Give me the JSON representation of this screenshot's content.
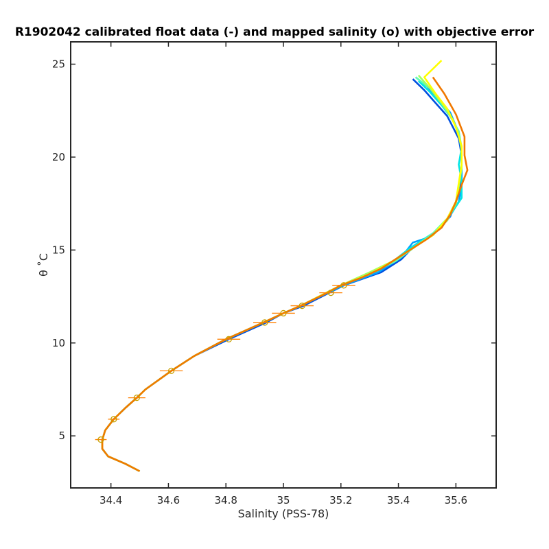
{
  "chart_data": {
    "type": "line",
    "title": "R1902042 calibrated float data (-) and mapped salinity (o) with objective error",
    "xlabel": "Salinity (PSS-78)",
    "ylabel": "θ ˚C",
    "xlim": [
      34.26,
      35.74
    ],
    "ylim": [
      2.2,
      26.2
    ],
    "xticks": [
      34.4,
      34.6,
      34.8,
      35,
      35.2,
      35.4,
      35.6
    ],
    "xtick_labels": [
      "34.4",
      "34.6",
      "34.8",
      "35",
      "35.2",
      "35.4",
      "35.6"
    ],
    "yticks": [
      5,
      10,
      15,
      20,
      25
    ],
    "ytick_labels": [
      "5",
      "10",
      "15",
      "20",
      "25"
    ],
    "grid": false,
    "series": [
      {
        "color": "#0050e0",
        "points": [
          [
            35.45,
            24.2
          ],
          [
            35.49,
            23.6
          ],
          [
            35.53,
            22.9
          ],
          [
            35.57,
            22.2
          ],
          [
            35.61,
            21.0
          ],
          [
            35.62,
            20.1
          ],
          [
            35.62,
            19.2
          ],
          [
            35.61,
            18.0
          ],
          [
            35.58,
            16.8
          ],
          [
            35.52,
            15.8
          ],
          [
            35.46,
            15.3
          ],
          [
            35.41,
            14.5
          ],
          [
            35.34,
            13.8
          ],
          [
            35.21,
            13.1
          ],
          [
            35.07,
            12.0
          ],
          [
            35.0,
            11.6
          ],
          [
            34.94,
            11.1
          ],
          [
            34.81,
            10.2
          ],
          [
            34.69,
            9.3
          ],
          [
            34.61,
            8.5
          ],
          [
            34.52,
            7.5
          ],
          [
            34.49,
            7.05
          ],
          [
            34.45,
            6.5
          ],
          [
            34.41,
            5.9
          ],
          [
            34.38,
            5.3
          ],
          [
            34.37,
            4.8
          ],
          [
            34.37,
            4.3
          ],
          [
            34.39,
            3.9
          ],
          [
            34.45,
            3.5
          ],
          [
            34.5,
            3.1
          ]
        ]
      },
      {
        "color": "#00a0ff",
        "points": [
          [
            35.46,
            24.3
          ],
          [
            35.5,
            23.8
          ],
          [
            35.54,
            23.1
          ],
          [
            35.58,
            22.4
          ],
          [
            35.61,
            21.3
          ],
          [
            35.62,
            20.3
          ],
          [
            35.62,
            19.4
          ],
          [
            35.62,
            18.4
          ],
          [
            35.61,
            17.6
          ],
          [
            35.57,
            16.6
          ],
          [
            35.51,
            15.7
          ],
          [
            35.45,
            15.4
          ],
          [
            35.41,
            14.6
          ],
          [
            35.33,
            13.8
          ],
          [
            35.21,
            13.1
          ],
          [
            35.06,
            12.0
          ],
          [
            35.0,
            11.6
          ],
          [
            34.93,
            11.1
          ],
          [
            34.8,
            10.2
          ],
          [
            34.69,
            9.3
          ],
          [
            34.61,
            8.5
          ],
          [
            34.52,
            7.5
          ],
          [
            34.49,
            7.05
          ],
          [
            34.45,
            6.5
          ],
          [
            34.41,
            5.9
          ],
          [
            34.38,
            5.3
          ],
          [
            34.37,
            4.8
          ],
          [
            34.37,
            4.3
          ],
          [
            34.39,
            3.9
          ],
          [
            34.45,
            3.5
          ],
          [
            34.5,
            3.1
          ]
        ]
      },
      {
        "color": "#00e5e5",
        "points": [
          [
            35.47,
            24.1
          ],
          [
            35.51,
            23.5
          ],
          [
            35.55,
            22.8
          ],
          [
            35.59,
            22.0
          ],
          [
            35.61,
            21.2
          ],
          [
            35.62,
            20.5
          ],
          [
            35.61,
            19.6
          ],
          [
            35.62,
            18.7
          ],
          [
            35.62,
            17.8
          ],
          [
            35.58,
            16.9
          ],
          [
            35.55,
            16.2
          ],
          [
            35.49,
            15.6
          ],
          [
            35.44,
            15.1
          ],
          [
            35.39,
            14.5
          ],
          [
            35.33,
            13.9
          ],
          [
            35.2,
            13.1
          ],
          [
            35.06,
            12.0
          ],
          [
            35.0,
            11.6
          ],
          [
            34.93,
            11.1
          ],
          [
            34.8,
            10.2
          ],
          [
            34.69,
            9.3
          ],
          [
            34.61,
            8.5
          ],
          [
            34.52,
            7.5
          ],
          [
            34.49,
            7.05
          ],
          [
            34.45,
            6.5
          ],
          [
            34.41,
            5.9
          ],
          [
            34.38,
            5.3
          ],
          [
            34.37,
            4.8
          ],
          [
            34.37,
            4.3
          ],
          [
            34.39,
            3.9
          ],
          [
            34.45,
            3.5
          ],
          [
            34.5,
            3.1
          ]
        ]
      },
      {
        "color": "#60ffb0",
        "points": [
          [
            35.46,
            24.3
          ],
          [
            35.51,
            23.7
          ],
          [
            35.55,
            23.0
          ],
          [
            35.58,
            22.2
          ],
          [
            35.61,
            21.4
          ],
          [
            35.62,
            20.5
          ],
          [
            35.62,
            19.5
          ],
          [
            35.61,
            18.5
          ],
          [
            35.6,
            17.6
          ],
          [
            35.57,
            16.7
          ],
          [
            35.52,
            15.9
          ],
          [
            35.46,
            15.2
          ],
          [
            35.39,
            14.4
          ],
          [
            35.31,
            13.8
          ],
          [
            35.2,
            13.1
          ],
          [
            35.06,
            12.0
          ],
          [
            35.0,
            11.6
          ],
          [
            34.93,
            11.1
          ],
          [
            34.8,
            10.2
          ],
          [
            34.69,
            9.3
          ],
          [
            34.61,
            8.5
          ],
          [
            34.52,
            7.5
          ],
          [
            34.49,
            7.05
          ],
          [
            34.45,
            6.5
          ],
          [
            34.41,
            5.9
          ],
          [
            34.38,
            5.3
          ],
          [
            34.37,
            4.8
          ],
          [
            34.37,
            4.3
          ],
          [
            34.39,
            3.9
          ],
          [
            34.45,
            3.5
          ],
          [
            34.5,
            3.1
          ]
        ]
      },
      {
        "color": "#a0ff60",
        "points": [
          [
            35.47,
            24.4
          ],
          [
            35.51,
            23.7
          ],
          [
            35.55,
            22.9
          ],
          [
            35.59,
            22.0
          ],
          [
            35.61,
            21.2
          ],
          [
            35.62,
            20.4
          ],
          [
            35.62,
            19.4
          ],
          [
            35.61,
            18.4
          ],
          [
            35.6,
            17.5
          ],
          [
            35.57,
            16.6
          ],
          [
            35.52,
            15.8
          ],
          [
            35.46,
            15.2
          ],
          [
            35.38,
            14.4
          ],
          [
            35.3,
            13.8
          ],
          [
            35.2,
            13.1
          ],
          [
            35.06,
            12.0
          ],
          [
            35.0,
            11.6
          ],
          [
            34.93,
            11.1
          ],
          [
            34.8,
            10.2
          ],
          [
            34.69,
            9.3
          ],
          [
            34.61,
            8.5
          ],
          [
            34.52,
            7.5
          ],
          [
            34.49,
            7.05
          ],
          [
            34.45,
            6.5
          ],
          [
            34.41,
            5.9
          ],
          [
            34.38,
            5.3
          ],
          [
            34.37,
            4.8
          ],
          [
            34.37,
            4.3
          ],
          [
            34.39,
            3.9
          ],
          [
            34.45,
            3.5
          ],
          [
            34.5,
            3.1
          ]
        ]
      },
      {
        "color": "#ffff00",
        "points": [
          [
            35.55,
            25.2
          ],
          [
            35.49,
            24.3
          ],
          [
            35.53,
            23.4
          ],
          [
            35.57,
            22.6
          ],
          [
            35.6,
            21.6
          ],
          [
            35.62,
            20.6
          ],
          [
            35.62,
            19.6
          ],
          [
            35.61,
            18.6
          ],
          [
            35.6,
            17.6
          ],
          [
            35.57,
            16.7
          ],
          [
            35.52,
            15.8
          ],
          [
            35.46,
            15.2
          ],
          [
            35.38,
            14.4
          ],
          [
            35.3,
            13.7
          ],
          [
            35.2,
            13.1
          ],
          [
            35.06,
            12.0
          ],
          [
            35.0,
            11.6
          ],
          [
            34.93,
            11.1
          ],
          [
            34.8,
            10.2
          ],
          [
            34.69,
            9.3
          ],
          [
            34.61,
            8.5
          ],
          [
            34.52,
            7.5
          ],
          [
            34.49,
            7.05
          ],
          [
            34.45,
            6.5
          ],
          [
            34.41,
            5.9
          ],
          [
            34.38,
            5.3
          ],
          [
            34.37,
            4.8
          ],
          [
            34.37,
            4.3
          ],
          [
            34.39,
            3.9
          ],
          [
            34.45,
            3.5
          ],
          [
            34.5,
            3.1
          ]
        ]
      },
      {
        "color": "#f07800",
        "points": [
          [
            35.52,
            24.3
          ],
          [
            35.56,
            23.4
          ],
          [
            35.6,
            22.3
          ],
          [
            35.63,
            21.1
          ],
          [
            35.63,
            20.1
          ],
          [
            35.64,
            19.3
          ],
          [
            35.62,
            18.5
          ],
          [
            35.6,
            17.6
          ],
          [
            35.58,
            16.9
          ],
          [
            35.55,
            16.2
          ],
          [
            35.5,
            15.6
          ],
          [
            35.44,
            15.0
          ],
          [
            35.39,
            14.5
          ],
          [
            35.34,
            14.0
          ],
          [
            35.27,
            13.5
          ],
          [
            35.2,
            13.1
          ],
          [
            35.14,
            12.6
          ],
          [
            35.06,
            12.0
          ],
          [
            35.0,
            11.6
          ],
          [
            34.93,
            11.1
          ],
          [
            34.8,
            10.2
          ],
          [
            34.69,
            9.3
          ],
          [
            34.61,
            8.5
          ],
          [
            34.52,
            7.5
          ],
          [
            34.49,
            7.05
          ],
          [
            34.45,
            6.5
          ],
          [
            34.41,
            5.9
          ],
          [
            34.38,
            5.3
          ],
          [
            34.37,
            4.8
          ],
          [
            34.37,
            4.3
          ],
          [
            34.39,
            3.9
          ],
          [
            34.45,
            3.5
          ],
          [
            34.5,
            3.1
          ]
        ]
      }
    ],
    "mapped": {
      "marker_color": "#c8a000",
      "errorbar_color": "#ff8000",
      "points": [
        {
          "x": 34.365,
          "y": 4.8,
          "err": 0.02
        },
        {
          "x": 34.41,
          "y": 5.9,
          "err": 0.02
        },
        {
          "x": 34.49,
          "y": 7.05,
          "err": 0.03
        },
        {
          "x": 34.61,
          "y": 8.5,
          "err": 0.04
        },
        {
          "x": 34.81,
          "y": 10.2,
          "err": 0.04
        },
        {
          "x": 34.935,
          "y": 11.1,
          "err": 0.04
        },
        {
          "x": 35.0,
          "y": 11.6,
          "err": 0.04
        },
        {
          "x": 35.065,
          "y": 12.0,
          "err": 0.04
        },
        {
          "x": 35.165,
          "y": 12.7,
          "err": 0.04
        },
        {
          "x": 35.21,
          "y": 13.1,
          "err": 0.04
        }
      ]
    }
  }
}
